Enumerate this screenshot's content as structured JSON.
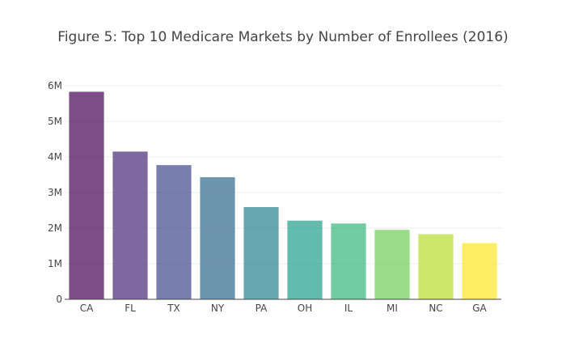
{
  "chart_data": {
    "type": "bar",
    "title": "Figure 5: Top 10 Medicare Markets by Number of Enrollees (2016)",
    "xlabel": "",
    "ylabel": "",
    "categories": [
      "CA",
      "FL",
      "TX",
      "NY",
      "PA",
      "OH",
      "IL",
      "MI",
      "NC",
      "GA"
    ],
    "values": [
      5830000,
      4150000,
      3770000,
      3430000,
      2590000,
      2210000,
      2130000,
      1950000,
      1830000,
      1580000
    ],
    "ylim": [
      0,
      6000000
    ],
    "yticks": [
      0,
      1000000,
      2000000,
      3000000,
      4000000,
      5000000,
      6000000
    ],
    "ytick_labels": [
      "0",
      "1M",
      "2M",
      "3M",
      "4M",
      "5M",
      "6M"
    ],
    "grid": true,
    "legend": "none",
    "bar_colors": [
      "#440154",
      "#482878",
      "#3e4989",
      "#31688e",
      "#26828e",
      "#1f9e89",
      "#35b779",
      "#6ece58",
      "#b5de2b",
      "#fde725"
    ],
    "bar_opacity": 0.7
  }
}
